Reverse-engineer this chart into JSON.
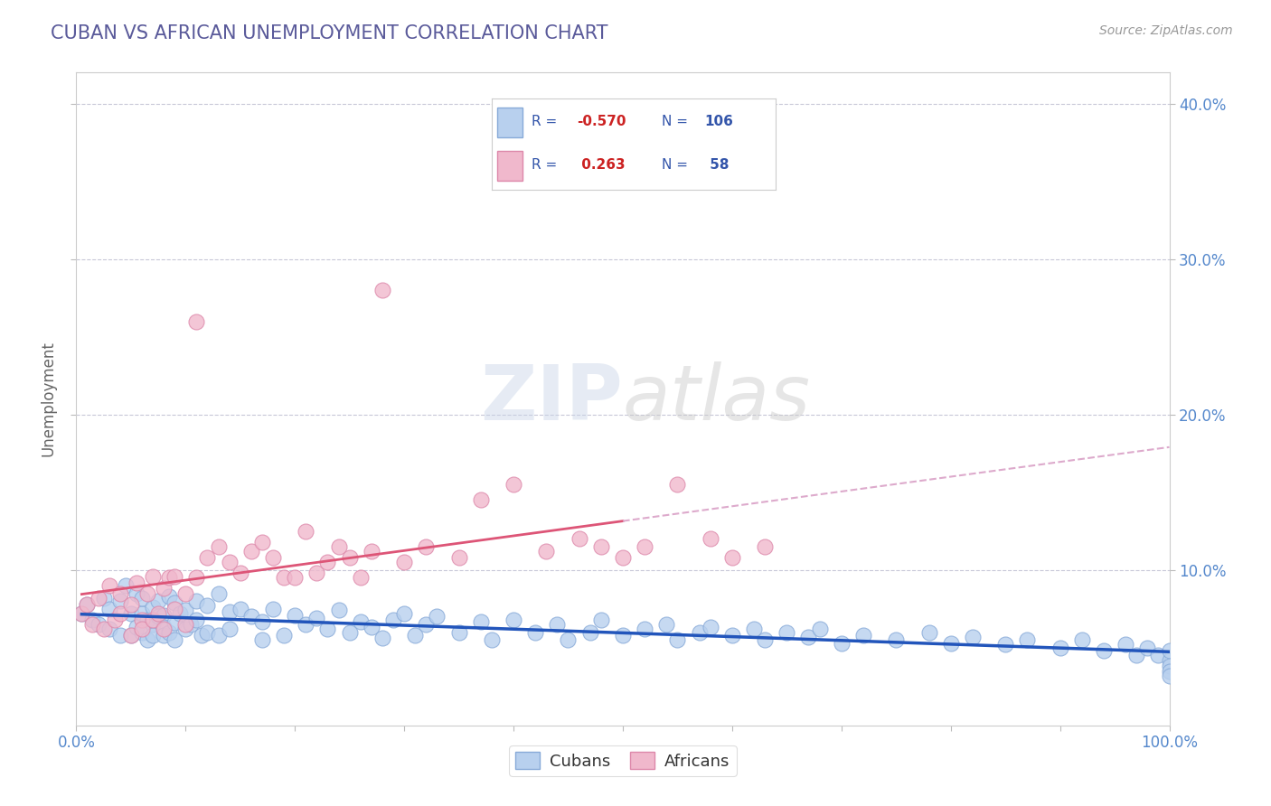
{
  "title": "CUBAN VS AFRICAN UNEMPLOYMENT CORRELATION CHART",
  "source": "Source: ZipAtlas.com",
  "ylabel": "Unemployment",
  "title_color": "#5a5a9a",
  "source_color": "#999999",
  "background_color": "#ffffff",
  "plot_bg_color": "#ffffff",
  "grid_color": "#c8c8d8",
  "xlim": [
    0.0,
    1.0
  ],
  "ylim": [
    0.0,
    0.42
  ],
  "xticks": [
    0.0,
    0.1,
    0.2,
    0.3,
    0.4,
    0.5,
    0.6,
    0.7,
    0.8,
    0.9,
    1.0
  ],
  "yticks": [
    0.1,
    0.2,
    0.3,
    0.4
  ],
  "tick_color": "#5588cc",
  "cubans_color": "#b8d0ee",
  "cubans_edge_color": "#88aad8",
  "africans_color": "#f0b8cc",
  "africans_edge_color": "#dd88aa",
  "cubans_line_color": "#2255bb",
  "africans_line_color": "#dd5577",
  "africans_trend_color": "#ddaacc",
  "legend_cubans_label": "Cubans",
  "legend_africans_label": "Africans",
  "R_cubans": -0.57,
  "N_cubans": 106,
  "R_africans": 0.263,
  "N_africans": 58,
  "cubans_x": [
    0.005,
    0.01,
    0.015,
    0.02,
    0.025,
    0.03,
    0.03,
    0.04,
    0.04,
    0.045,
    0.05,
    0.05,
    0.055,
    0.055,
    0.06,
    0.06,
    0.06,
    0.065,
    0.065,
    0.07,
    0.07,
    0.07,
    0.075,
    0.075,
    0.08,
    0.08,
    0.08,
    0.085,
    0.085,
    0.09,
    0.09,
    0.09,
    0.095,
    0.1,
    0.1,
    0.105,
    0.11,
    0.11,
    0.115,
    0.12,
    0.12,
    0.13,
    0.13,
    0.14,
    0.14,
    0.15,
    0.16,
    0.17,
    0.17,
    0.18,
    0.19,
    0.2,
    0.21,
    0.22,
    0.23,
    0.24,
    0.25,
    0.26,
    0.27,
    0.28,
    0.29,
    0.3,
    0.31,
    0.32,
    0.33,
    0.35,
    0.37,
    0.38,
    0.4,
    0.42,
    0.44,
    0.45,
    0.47,
    0.48,
    0.5,
    0.52,
    0.54,
    0.55,
    0.57,
    0.58,
    0.6,
    0.62,
    0.63,
    0.65,
    0.67,
    0.68,
    0.7,
    0.72,
    0.75,
    0.78,
    0.8,
    0.82,
    0.85,
    0.87,
    0.9,
    0.92,
    0.94,
    0.96,
    0.97,
    0.98,
    0.99,
    1.0,
    1.0,
    1.0,
    1.0,
    1.0
  ],
  "cubans_y": [
    0.072,
    0.078,
    0.068,
    0.065,
    0.082,
    0.075,
    0.062,
    0.08,
    0.058,
    0.09,
    0.072,
    0.058,
    0.085,
    0.063,
    0.072,
    0.06,
    0.082,
    0.068,
    0.055,
    0.076,
    0.065,
    0.058,
    0.08,
    0.07,
    0.071,
    0.063,
    0.058,
    0.083,
    0.06,
    0.066,
    0.079,
    0.055,
    0.072,
    0.074,
    0.062,
    0.065,
    0.08,
    0.068,
    0.058,
    0.077,
    0.06,
    0.085,
    0.058,
    0.073,
    0.062,
    0.075,
    0.07,
    0.067,
    0.055,
    0.075,
    0.058,
    0.071,
    0.065,
    0.069,
    0.062,
    0.074,
    0.06,
    0.067,
    0.063,
    0.056,
    0.068,
    0.072,
    0.058,
    0.065,
    0.07,
    0.06,
    0.067,
    0.055,
    0.068,
    0.06,
    0.065,
    0.055,
    0.06,
    0.068,
    0.058,
    0.062,
    0.065,
    0.055,
    0.06,
    0.063,
    0.058,
    0.062,
    0.055,
    0.06,
    0.057,
    0.062,
    0.053,
    0.058,
    0.055,
    0.06,
    0.053,
    0.057,
    0.052,
    0.055,
    0.05,
    0.055,
    0.048,
    0.052,
    0.045,
    0.05,
    0.045,
    0.042,
    0.048,
    0.038,
    0.035,
    0.032
  ],
  "africans_x": [
    0.005,
    0.01,
    0.015,
    0.02,
    0.025,
    0.03,
    0.035,
    0.04,
    0.04,
    0.05,
    0.05,
    0.055,
    0.06,
    0.06,
    0.065,
    0.07,
    0.07,
    0.075,
    0.08,
    0.08,
    0.085,
    0.09,
    0.09,
    0.1,
    0.1,
    0.11,
    0.11,
    0.12,
    0.13,
    0.14,
    0.15,
    0.16,
    0.17,
    0.18,
    0.19,
    0.2,
    0.21,
    0.22,
    0.23,
    0.24,
    0.25,
    0.26,
    0.27,
    0.28,
    0.3,
    0.32,
    0.35,
    0.37,
    0.4,
    0.43,
    0.46,
    0.48,
    0.5,
    0.52,
    0.55,
    0.58,
    0.6,
    0.63
  ],
  "africans_y": [
    0.072,
    0.078,
    0.065,
    0.082,
    0.062,
    0.09,
    0.068,
    0.085,
    0.072,
    0.078,
    0.058,
    0.092,
    0.068,
    0.062,
    0.085,
    0.096,
    0.068,
    0.072,
    0.088,
    0.062,
    0.095,
    0.096,
    0.075,
    0.085,
    0.065,
    0.26,
    0.095,
    0.108,
    0.115,
    0.105,
    0.098,
    0.112,
    0.118,
    0.108,
    0.095,
    0.095,
    0.125,
    0.098,
    0.105,
    0.115,
    0.108,
    0.095,
    0.112,
    0.28,
    0.105,
    0.115,
    0.108,
    0.145,
    0.155,
    0.112,
    0.12,
    0.115,
    0.108,
    0.115,
    0.155,
    0.12,
    0.108,
    0.115
  ]
}
